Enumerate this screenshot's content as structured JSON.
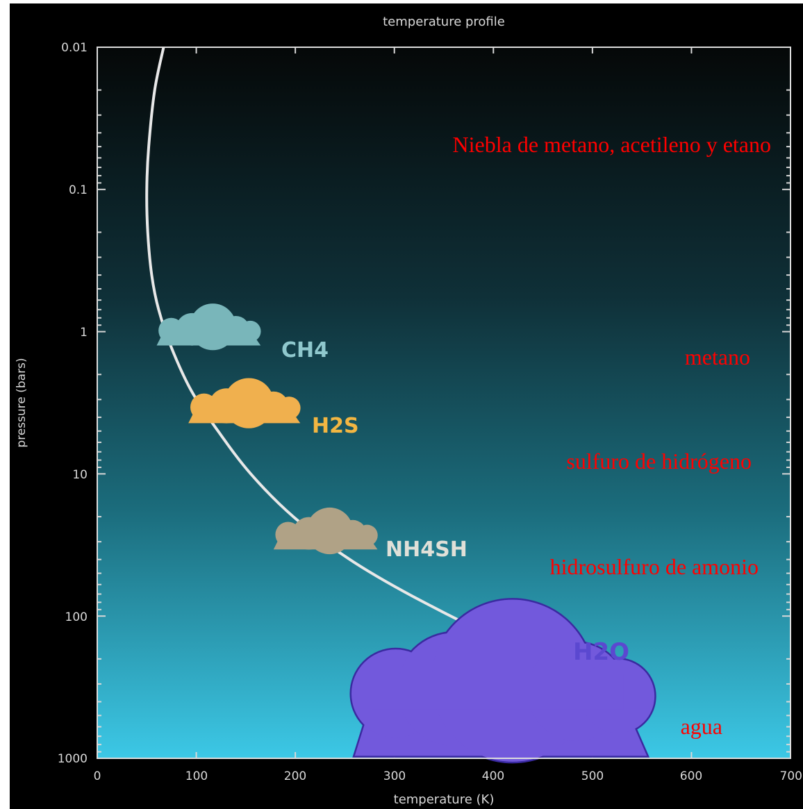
{
  "chart_data": {
    "type": "line",
    "title": "temperature profile",
    "xlabel": "temperature (K)",
    "ylabel": "pressure (bars)",
    "xlim": [
      0,
      700
    ],
    "ylim": [
      0.01,
      1000
    ],
    "y_scale": "log",
    "grid": false,
    "x_ticks": [
      0,
      100,
      200,
      300,
      400,
      500,
      600,
      700
    ],
    "x_tick_labels": [
      "0",
      "100",
      "200",
      "300",
      "400",
      "500",
      "600",
      "700"
    ],
    "y_ticks": [
      0.01,
      0.1,
      1,
      10,
      100,
      1000
    ],
    "y_tick_labels": [
      "0.01",
      "0.1",
      "1",
      "10",
      "100",
      "1000"
    ],
    "series": [
      {
        "x": [
          67,
          58,
          52,
          50,
          51,
          55,
          62,
          75,
          95,
          122,
          155,
          198,
          255,
          330,
          420,
          535
        ],
        "y": [
          0.01,
          0.02,
          0.05,
          0.1,
          0.2,
          0.4,
          0.7,
          1.3,
          2.6,
          5,
          10,
          20,
          40,
          80,
          160,
          320
        ],
        "color": "#e8e8e8"
      }
    ],
    "clouds": [
      {
        "label": "CH4",
        "t_min": 60,
        "t_max": 165,
        "p": 1.25,
        "color": "#79b6ba",
        "label_color": "#8fc8cd"
      },
      {
        "label": "H2S",
        "t_min": 92,
        "t_max": 205,
        "p": 4.4,
        "color": "#f0b04e",
        "label_color": "#f2b642"
      },
      {
        "label": "NH4SH",
        "t_min": 178,
        "t_max": 283,
        "p": 34,
        "color": "#b0a286",
        "label_color": "#e0e0d8"
      },
      {
        "label": "H2O",
        "t_min": 260,
        "t_max": 555,
        "p": 960,
        "color": "#7259dc",
        "label_color": "#5b48d0"
      }
    ],
    "annotations": [
      "Niebla de metano, acetileno y etano",
      "metano",
      "sulfuro de hidrógeno",
      "hidrosulfuro de amonio",
      "agua"
    ],
    "colors": {
      "background_top": "#050808",
      "background_bottom": "#3cc8e6",
      "axis": "#e0e0e0",
      "annotation": "#ff0000"
    }
  }
}
